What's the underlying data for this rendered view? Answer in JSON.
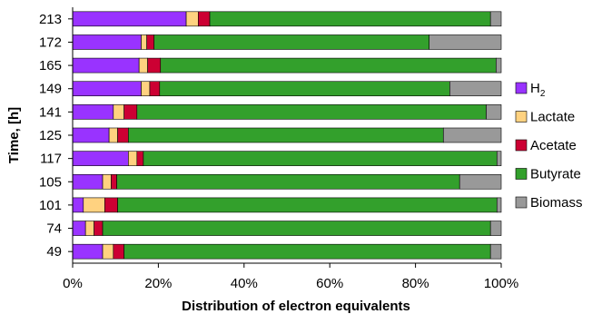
{
  "chart_data": {
    "type": "bar",
    "orientation": "horizontal",
    "stacked": true,
    "title": "",
    "xlabel": "Distribution of electron equivalents",
    "ylabel": "Time, [h]",
    "xlim": [
      0,
      100
    ],
    "x_ticks": [
      "0%",
      "20%",
      "40%",
      "60%",
      "80%",
      "100%"
    ],
    "grid": false,
    "legend_position": "right",
    "categories": [
      "213",
      "172",
      "165",
      "149",
      "141",
      "125",
      "117",
      "105",
      "101",
      "74",
      "49"
    ],
    "series": [
      {
        "name": "H",
        "name_sub": "2",
        "color": "#9933ff",
        "values": [
          26.5,
          16,
          15.5,
          16,
          9.5,
          8.5,
          13,
          7,
          2.5,
          3,
          7
        ]
      },
      {
        "name": "Lactate",
        "color": "#ffd280",
        "values": [
          2.8,
          1.3,
          2,
          2,
          2.5,
          2,
          2,
          2,
          5,
          2,
          2.5
        ]
      },
      {
        "name": "Acetate",
        "color": "#cc0033",
        "values": [
          2.7,
          1.7,
          3,
          2.3,
          3,
          2.5,
          1.5,
          1.3,
          3,
          2,
          2.5
        ]
      },
      {
        "name": "Butyrate",
        "color": "#33a02c",
        "values": [
          65.5,
          64.2,
          78.3,
          67.7,
          81.5,
          73.5,
          82.5,
          80,
          88.5,
          90.5,
          85.5
        ]
      },
      {
        "name": "Biomass",
        "color": "#999999",
        "values": [
          2.5,
          16.8,
          1.2,
          12,
          3.5,
          13.5,
          1,
          9.7,
          1,
          2.5,
          2.5
        ]
      }
    ]
  }
}
